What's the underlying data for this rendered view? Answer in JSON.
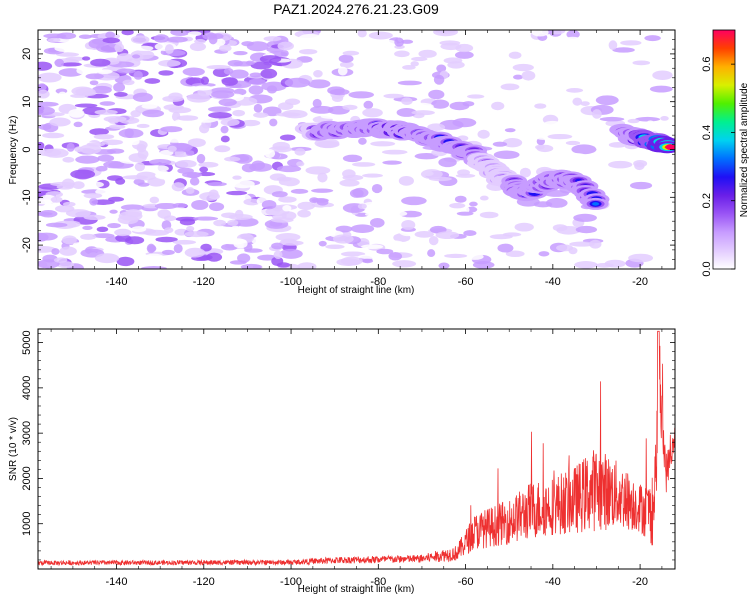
{
  "title": "PAZ1.2024.276.21.23.G09",
  "chart_data": [
    {
      "type": "heatmap",
      "xlabel": "Height of straight line (km)",
      "ylabel": "Frequency (Hz)",
      "xlim": [
        -158,
        -12
      ],
      "ylim": [
        -25,
        25
      ],
      "xticks": [
        -140,
        -120,
        -100,
        -80,
        -60,
        -40,
        -20
      ],
      "yticks": [
        -20,
        -10,
        0,
        10,
        20
      ],
      "colorbar": {
        "label": "Normalized spectral amplitude",
        "range": [
          0.0,
          0.7
        ],
        "ticks": [
          "0.0",
          "0.2",
          "0.4",
          "0.6"
        ],
        "colors": [
          "#ffffff",
          "#e3ccff",
          "#c79cff",
          "#9a55f5",
          "#6a1fe8",
          "#1f10f5",
          "#0070ff",
          "#00d2f0",
          "#00f090",
          "#50f000",
          "#d8f000",
          "#ffb000",
          "#ff4000",
          "#ff0060"
        ]
      },
      "ridge": [
        {
          "x": -96,
          "y": 4,
          "v": 0.22
        },
        {
          "x": -88,
          "y": 4,
          "v": 0.26
        },
        {
          "x": -82,
          "y": 4.5,
          "v": 0.3
        },
        {
          "x": -76,
          "y": 4,
          "v": 0.34
        },
        {
          "x": -70,
          "y": 3,
          "v": 0.3
        },
        {
          "x": -64,
          "y": 1,
          "v": 0.3
        },
        {
          "x": -58,
          "y": -1,
          "v": 0.24
        },
        {
          "x": -54,
          "y": -4,
          "v": 0.2
        },
        {
          "x": -50,
          "y": -7,
          "v": 0.22
        },
        {
          "x": -46,
          "y": -9.5,
          "v": 0.3
        },
        {
          "x": -40,
          "y": -6,
          "v": 0.26
        },
        {
          "x": -34,
          "y": -7,
          "v": 0.24
        },
        {
          "x": -30,
          "y": -11,
          "v": 0.3
        },
        {
          "x": -24,
          "y": 3.5,
          "v": 0.24
        },
        {
          "x": -18,
          "y": 2,
          "v": 0.45
        },
        {
          "x": -13,
          "y": 0.5,
          "v": 0.68
        }
      ]
    },
    {
      "type": "line",
      "xlabel": "Height of straight line (km)",
      "ylabel": "SNR (10 * v/v)",
      "xlim": [
        -158,
        -12
      ],
      "ylim": [
        0,
        5300
      ],
      "xticks": [
        -140,
        -120,
        -100,
        -80,
        -60,
        -40,
        -20
      ],
      "yticks": [
        1000,
        2000,
        3000,
        4000,
        5000
      ],
      "color": "#ee3030",
      "envelope": [
        {
          "x": -158,
          "base": 120,
          "amp": 100
        },
        {
          "x": -100,
          "base": 130,
          "amp": 110
        },
        {
          "x": -90,
          "base": 170,
          "amp": 150
        },
        {
          "x": -70,
          "base": 200,
          "amp": 180
        },
        {
          "x": -62,
          "base": 300,
          "amp": 350
        },
        {
          "x": -58,
          "base": 700,
          "amp": 800
        },
        {
          "x": -50,
          "base": 900,
          "amp": 1000
        },
        {
          "x": -45,
          "base": 1100,
          "amp": 1300
        },
        {
          "x": -40,
          "base": 1200,
          "amp": 1300
        },
        {
          "x": -35,
          "base": 1300,
          "amp": 1500
        },
        {
          "x": -30,
          "base": 1500,
          "amp": 1900
        },
        {
          "x": -25,
          "base": 1400,
          "amp": 1500
        },
        {
          "x": -20,
          "base": 1200,
          "amp": 1100
        },
        {
          "x": -17,
          "base": 1000,
          "amp": 1500
        },
        {
          "x": -15.5,
          "base": 3500,
          "amp": 1800
        },
        {
          "x": -14,
          "base": 2000,
          "amp": 900
        },
        {
          "x": -12,
          "base": 2800,
          "amp": 400
        }
      ]
    }
  ]
}
